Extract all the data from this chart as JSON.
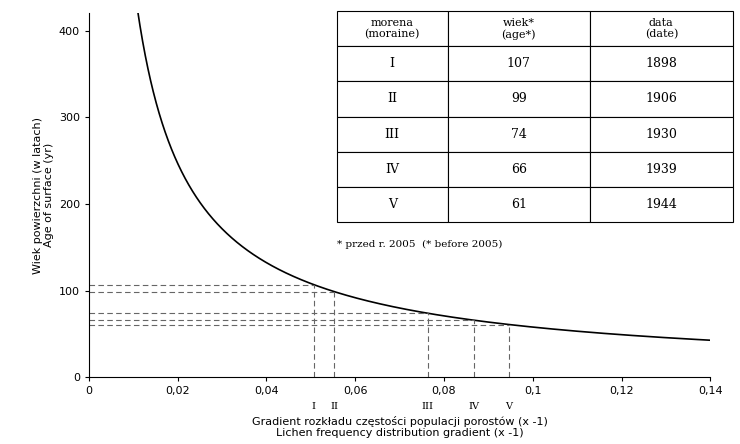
{
  "formula_a": 7.307,
  "formula_b": -0.9,
  "xlim": [
    0,
    0.14
  ],
  "ylim": [
    0,
    420
  ],
  "xticks": [
    0,
    0.02,
    0.04,
    0.06,
    0.08,
    0.1,
    0.12,
    0.14
  ],
  "xtick_labels": [
    "0",
    "0,02",
    "0,04",
    "0,06",
    "0,08",
    "0,1",
    "0,12",
    "0,14"
  ],
  "yticks": [
    0,
    100,
    200,
    300,
    400
  ],
  "ylabel_pl": "Wiek powierzchni (w latach)",
  "ylabel_en": "Age of surface (yr)",
  "xlabel_pl": "Gradient rozkładu częstości populacji porostów (x -1)",
  "xlabel_en": "Lichen frequency distribution gradient (x -1)",
  "moraines": {
    "labels": [
      "I",
      "II",
      "III",
      "IV",
      "V"
    ],
    "ages": [
      107,
      99,
      74,
      66,
      61
    ],
    "dates": [
      1898,
      1906,
      1930,
      1939,
      1944
    ]
  },
  "footnote": "* przed r. 2005  (* before 2005)",
  "curve_color": "#000000",
  "dashed_line_color": "#666666",
  "background_color": "#ffffff",
  "col_labels": [
    [
      "morena\n(moraine)",
      "wiek*\n(age*)",
      "data\n(date)"
    ],
    [
      "I",
      "107",
      "1898"
    ],
    [
      "II",
      "99",
      "1906"
    ],
    [
      "III",
      "74",
      "1930"
    ],
    [
      "IV",
      "66",
      "1939"
    ],
    [
      "V",
      "61",
      "1944"
    ]
  ]
}
